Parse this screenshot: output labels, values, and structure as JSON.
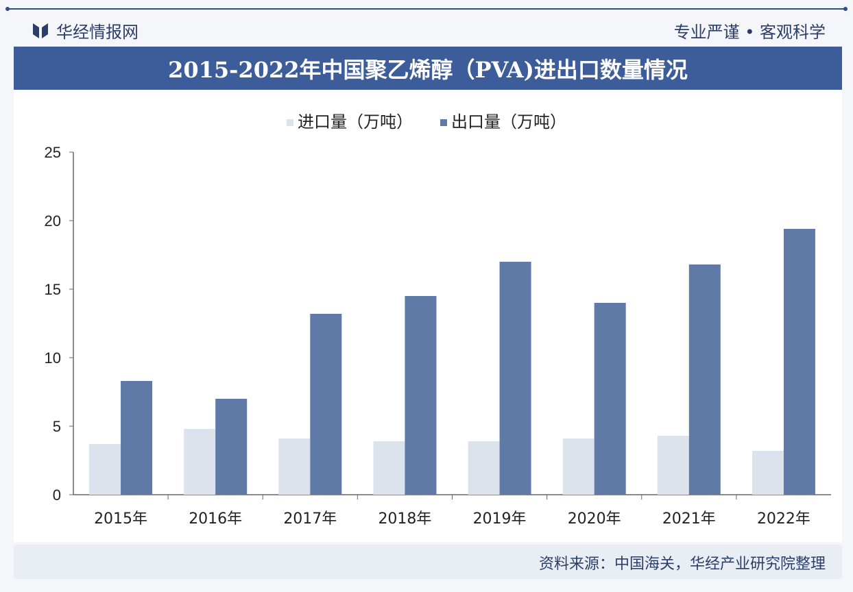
{
  "header": {
    "brand": "华经情报网",
    "slogan": "专业严谨 • 客观科学"
  },
  "colors": {
    "import": "#dde3ec",
    "export": "#5f7aa6",
    "title_bg": "#3d5c9a"
  },
  "footer": {
    "source": "资料来源：中国海关，华经产业研究院整理"
  },
  "chart_data": {
    "type": "bar",
    "title": "2015-2022年中国聚乙烯醇（PVA)进出口数量情况",
    "categories": [
      "2015年",
      "2016年",
      "2017年",
      "2018年",
      "2019年",
      "2020年",
      "2021年",
      "2022年"
    ],
    "series": [
      {
        "name": "进口量（万吨）",
        "values": [
          3.7,
          4.8,
          4.1,
          3.9,
          3.9,
          4.1,
          4.3,
          3.2
        ]
      },
      {
        "name": "出口量（万吨）",
        "values": [
          8.3,
          7.0,
          13.2,
          14.5,
          17.0,
          14.0,
          16.8,
          19.4
        ]
      }
    ],
    "ylim": [
      0,
      25
    ],
    "yticks": [
      "0",
      "5",
      "10",
      "15",
      "20",
      "25"
    ],
    "grid": false,
    "legend": "top"
  }
}
